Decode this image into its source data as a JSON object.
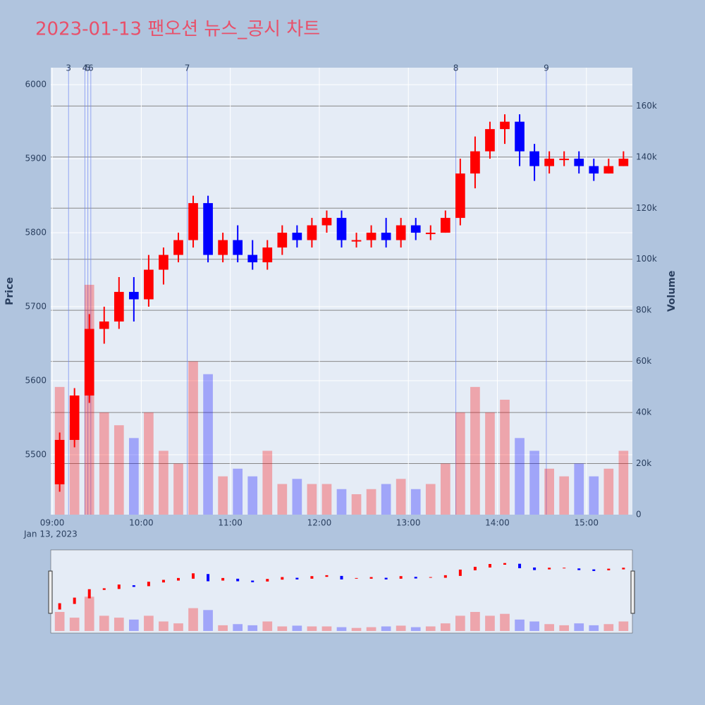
{
  "chart_data": {
    "type": "candlestick",
    "title": "2023-01-13 팬오션 뉴스_공시 차트",
    "x_date_label": "Jan 13, 2023",
    "y_title": "Price",
    "y2_title": "Volume",
    "increasing_color": "#ff0000",
    "decreasing_color": "#0000ff",
    "x": [
      "09:00",
      "09:10",
      "09:20",
      "09:30",
      "09:40",
      "09:50",
      "10:00",
      "10:10",
      "10:20",
      "10:30",
      "10:40",
      "10:50",
      "11:00",
      "11:10",
      "11:20",
      "11:30",
      "11:40",
      "11:50",
      "12:00",
      "12:10",
      "12:20",
      "12:30",
      "12:40",
      "12:50",
      "13:00",
      "13:10",
      "13:20",
      "13:30",
      "13:40",
      "13:50",
      "14:00",
      "14:10",
      "14:20",
      "14:30",
      "14:40",
      "14:50",
      "15:00",
      "15:10",
      "15:20"
    ],
    "open": [
      5460,
      5520,
      5580,
      5670,
      5680,
      5720,
      5710,
      5750,
      5770,
      5790,
      5840,
      5770,
      5790,
      5770,
      5760,
      5780,
      5800,
      5790,
      5810,
      5820,
      5790,
      5790,
      5800,
      5790,
      5810,
      5800,
      5800,
      5820,
      5880,
      5910,
      5940,
      5950,
      5910,
      5890,
      5900,
      5900,
      5890,
      5880,
      5890
    ],
    "high": [
      5530,
      5590,
      5690,
      5700,
      5740,
      5740,
      5770,
      5780,
      5800,
      5850,
      5850,
      5800,
      5810,
      5790,
      5790,
      5810,
      5810,
      5820,
      5830,
      5830,
      5800,
      5810,
      5820,
      5820,
      5820,
      5810,
      5830,
      5900,
      5930,
      5950,
      5960,
      5960,
      5920,
      5910,
      5910,
      5910,
      5900,
      5900,
      5910
    ],
    "low": [
      5450,
      5510,
      5570,
      5650,
      5670,
      5680,
      5700,
      5730,
      5760,
      5780,
      5760,
      5760,
      5760,
      5750,
      5750,
      5770,
      5780,
      5780,
      5800,
      5780,
      5780,
      5780,
      5780,
      5780,
      5790,
      5790,
      5800,
      5810,
      5860,
      5900,
      5920,
      5890,
      5870,
      5880,
      5890,
      5880,
      5870,
      5880,
      5890
    ],
    "close": [
      5520,
      5580,
      5670,
      5680,
      5720,
      5710,
      5750,
      5770,
      5790,
      5840,
      5770,
      5790,
      5770,
      5760,
      5780,
      5800,
      5790,
      5810,
      5820,
      5790,
      5790,
      5800,
      5790,
      5810,
      5800,
      5800,
      5820,
      5880,
      5910,
      5940,
      5950,
      5910,
      5890,
      5900,
      5900,
      5890,
      5880,
      5890,
      5900
    ],
    "volume": [
      50000,
      35000,
      90000,
      40000,
      35000,
      30000,
      40000,
      25000,
      20000,
      60000,
      55000,
      15000,
      18000,
      15000,
      25000,
      12000,
      14000,
      12000,
      12000,
      10000,
      8000,
      10000,
      12000,
      14000,
      10000,
      12000,
      20000,
      40000,
      50000,
      40000,
      45000,
      30000,
      25000,
      18000,
      15000,
      20000,
      15000,
      18000,
      25000
    ],
    "xlim": [
      "08:59",
      "15:31"
    ],
    "xticks": [
      "09:00",
      "10:00",
      "11:00",
      "12:00",
      "13:00",
      "14:00",
      "15:00"
    ],
    "ylim": [
      5419,
      6023
    ],
    "yticks": [
      5500,
      5600,
      5700,
      5800,
      5900,
      6000
    ],
    "y2lim": [
      0,
      175000
    ],
    "y2ticks": [
      0,
      {
        "value": 20000,
        "label": "20k"
      },
      {
        "value": 40000,
        "label": "40k"
      },
      {
        "value": 60000,
        "label": "60k"
      },
      {
        "value": 80000,
        "label": "80k"
      },
      {
        "value": 100000,
        "label": "100k"
      },
      {
        "value": 120000,
        "label": "120k"
      },
      {
        "value": 140000,
        "label": "140k"
      },
      {
        "value": 160000,
        "label": "160k"
      }
    ],
    "news": [
      {
        "label": "3",
        "x": "09:11"
      },
      {
        "label": "4",
        "x": "09:22"
      },
      {
        "label": "5",
        "x": "09:24"
      },
      {
        "label": "6",
        "x": "09:26"
      },
      {
        "label": "7",
        "x": "10:31"
      },
      {
        "label": "8",
        "x": "13:32"
      },
      {
        "label": "9",
        "x": "14:33"
      }
    ]
  }
}
